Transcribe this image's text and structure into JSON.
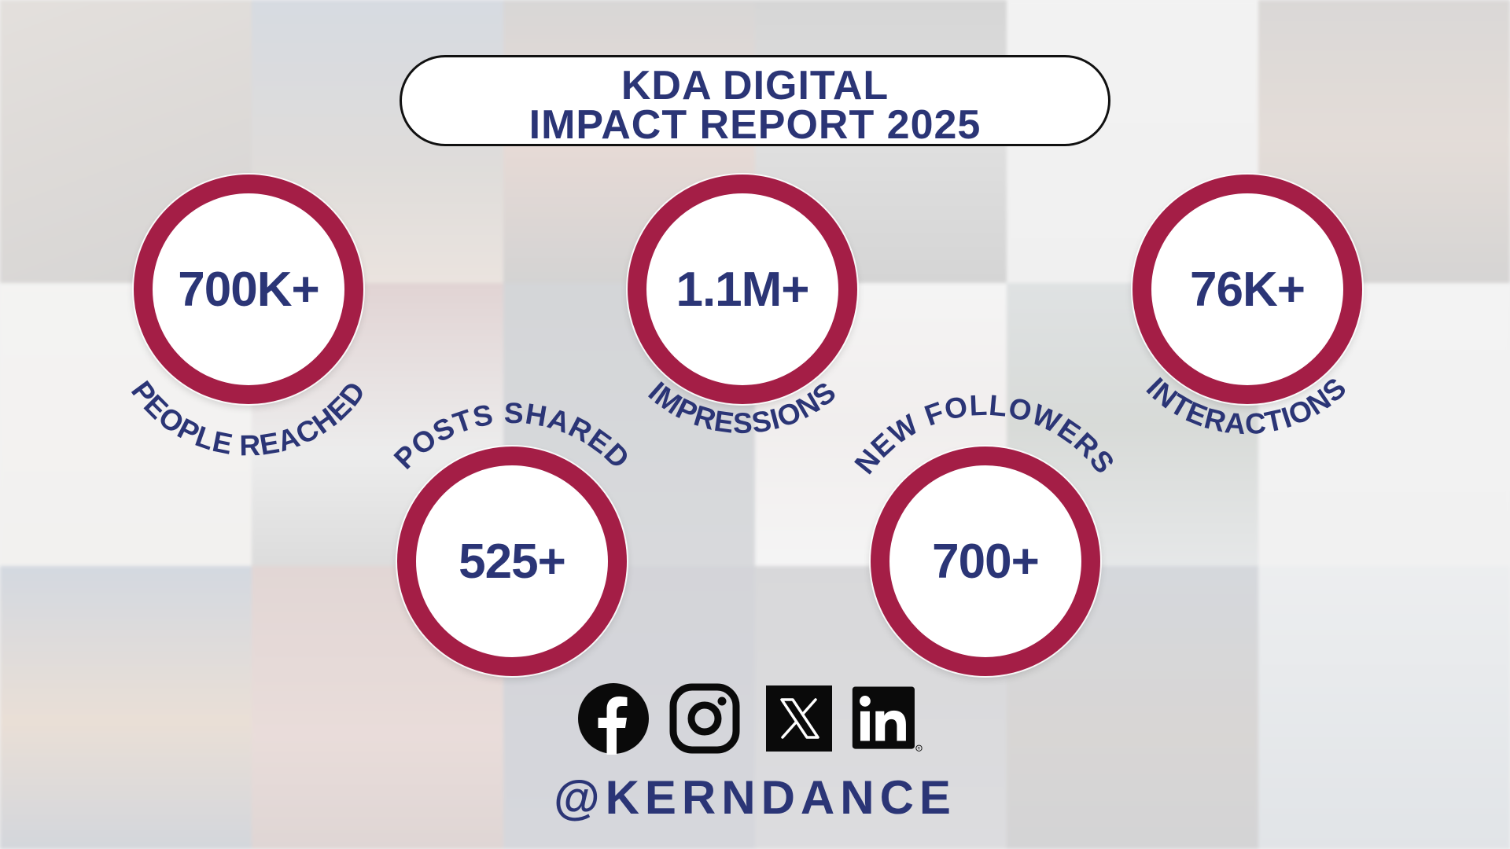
{
  "title": {
    "line1": "KDA DIGITAL",
    "line2": "IMPACT REPORT 2025"
  },
  "stats": {
    "people_reached": {
      "value": "700K+",
      "label": "PEOPLE REACHED"
    },
    "impressions": {
      "value": "1.1M+",
      "label": "IMPRESSIONS"
    },
    "interactions": {
      "value": "76K+",
      "label": "INTERACTIONS"
    },
    "posts_shared": {
      "value": "525+",
      "label": "POSTS SHARED"
    },
    "new_followers": {
      "value": "700+",
      "label": "NEW FOLLOWERS"
    }
  },
  "social": {
    "icons": [
      "facebook-icon",
      "instagram-icon",
      "x-icon",
      "linkedin-icon"
    ],
    "handle": "@KERNDANCE"
  },
  "colors": {
    "navy": "#2b3576",
    "crimson": "#a41e46",
    "white": "#ffffff",
    "black": "#111111"
  }
}
